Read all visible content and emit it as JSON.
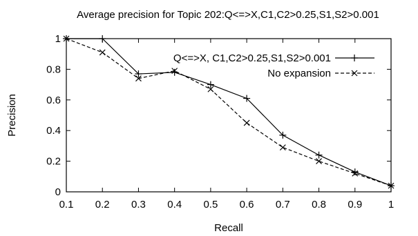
{
  "chart_data": {
    "type": "line",
    "title": "Average precision for Topic 202:Q<=>X,C1,C2>0.25,S1,S2>0.001",
    "xlabel": "Recall",
    "ylabel": "Precision",
    "xlim": [
      0.1,
      1
    ],
    "ylim": [
      0,
      1
    ],
    "x_ticks": [
      "0.1",
      "0.2",
      "0.3",
      "0.4",
      "0.5",
      "0.6",
      "0.7",
      "0.8",
      "0.9",
      "1"
    ],
    "y_ticks": [
      "0",
      "0.2",
      "0.4",
      "0.6",
      "0.8",
      "1"
    ],
    "grid": false,
    "legend_position": "top-right",
    "x": [
      0.1,
      0.2,
      0.3,
      0.4,
      0.5,
      0.6,
      0.7,
      0.8,
      0.9,
      1.0
    ],
    "series": [
      {
        "name": "Q<=>X, C1,C2>0.25,S1,S2>0.001",
        "values": [
          1.0,
          1.0,
          0.77,
          0.78,
          0.7,
          0.61,
          0.37,
          0.24,
          0.13,
          0.04
        ],
        "marker": "plus",
        "line_style": "solid",
        "color": "#000000"
      },
      {
        "name": "No expansion",
        "values": [
          1.0,
          0.91,
          0.74,
          0.79,
          0.67,
          0.45,
          0.29,
          0.2,
          0.12,
          0.04
        ],
        "marker": "cross",
        "line_style": "dashed",
        "color": "#000000"
      }
    ]
  }
}
